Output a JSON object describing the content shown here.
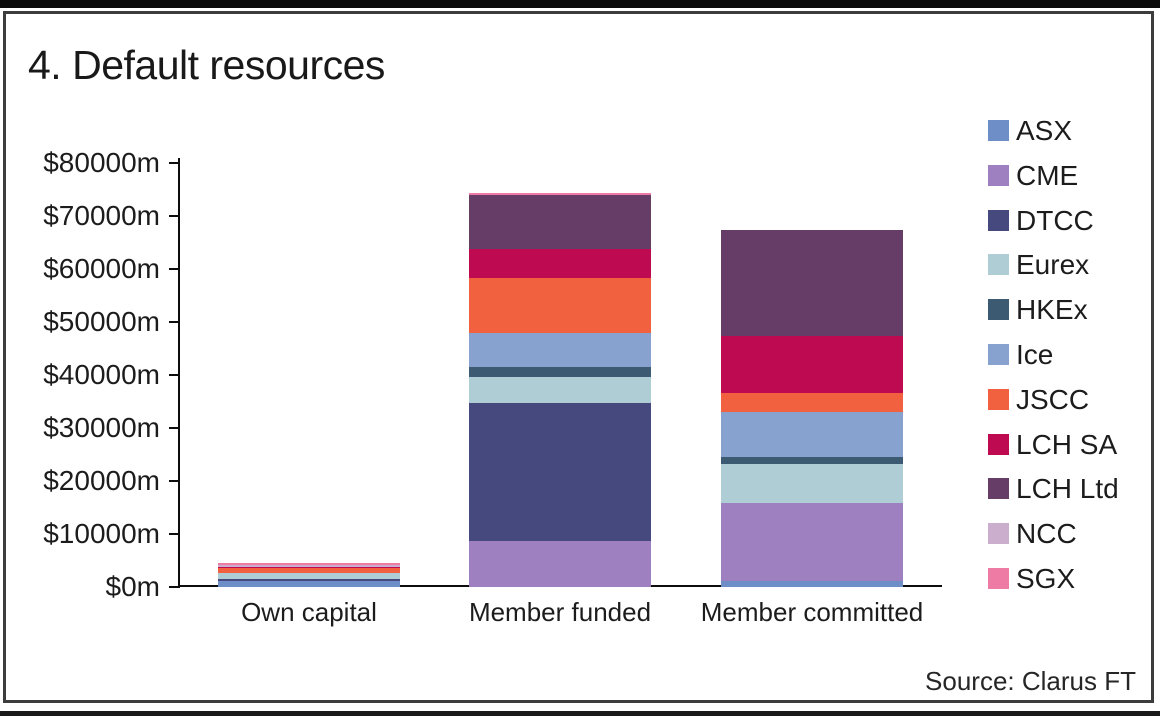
{
  "title": "4. Default resources",
  "source_note": "Source: Clarus FT",
  "chart_data": {
    "type": "bar",
    "stacked": true,
    "title": "4. Default resources",
    "unit": "$m",
    "categories": [
      "Own capital",
      "Member funded",
      "Member committed"
    ],
    "ylim": [
      0,
      80000
    ],
    "y_tick_step": 10000,
    "y_tick_labels": [
      "$0m",
      "$10000m",
      "$20000m",
      "$30000m",
      "$40000m",
      "$50000m",
      "$60000m",
      "$70000m",
      "$80000m"
    ],
    "grid": false,
    "legend_position": "right",
    "series": [
      {
        "name": "ASX",
        "color": "#6d8ec6",
        "values": [
          1000,
          0,
          1000
        ]
      },
      {
        "name": "CME",
        "color": "#9e80c0",
        "values": [
          0,
          8600,
          14800
        ]
      },
      {
        "name": "DTCC",
        "color": "#45497e",
        "values": [
          400,
          26100,
          0
        ]
      },
      {
        "name": "Eurex",
        "color": "#afcdd5",
        "values": [
          1100,
          4800,
          7300
        ]
      },
      {
        "name": "HKEx",
        "color": "#3c5a72",
        "values": [
          0,
          2000,
          1300
        ]
      },
      {
        "name": "Ice",
        "color": "#87a2ce",
        "values": [
          0,
          6300,
          8500
        ]
      },
      {
        "name": "JSCC",
        "color": "#f1603f",
        "values": [
          1000,
          10500,
          3600
        ]
      },
      {
        "name": "LCH SA",
        "color": "#bd0a50",
        "values": [
          250,
          5400,
          10700
        ]
      },
      {
        "name": "LCH Ltd",
        "color": "#663d66",
        "values": [
          0,
          10100,
          20100
        ]
      },
      {
        "name": "NCC",
        "color": "#cbaecd",
        "values": [
          400,
          0,
          0
        ]
      },
      {
        "name": "SGX",
        "color": "#ee7ba4",
        "values": [
          250,
          400,
          0
        ]
      }
    ],
    "totals": [
      4400,
      74200,
      67300
    ]
  }
}
